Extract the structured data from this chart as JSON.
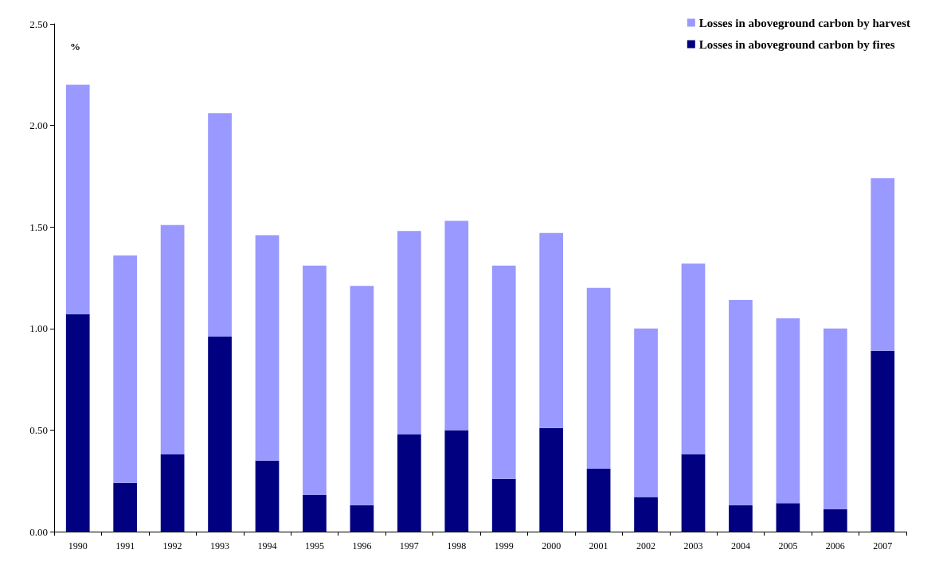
{
  "chart_data": {
    "type": "bar",
    "ylabel": "%",
    "stacked": true,
    "categories": [
      "1990",
      "1991",
      "1992",
      "1993",
      "1994",
      "1995",
      "1996",
      "1997",
      "1998",
      "1999",
      "2000",
      "2001",
      "2002",
      "2003",
      "2004",
      "2005",
      "2006",
      "2007"
    ],
    "series": [
      {
        "name": "Losses in aboveground carbon by fires",
        "color": "#000080",
        "values": [
          1.07,
          0.24,
          0.38,
          0.96,
          0.35,
          0.18,
          0.13,
          0.48,
          0.5,
          0.26,
          0.51,
          0.31,
          0.17,
          0.38,
          0.13,
          0.14,
          0.11,
          0.89
        ]
      },
      {
        "name": "Losses in aboveground carbon by harvest",
        "color": "#9999ff",
        "values": [
          1.13,
          1.12,
          1.13,
          1.1,
          1.11,
          1.13,
          1.08,
          1.0,
          1.03,
          1.05,
          0.96,
          0.89,
          0.83,
          0.94,
          1.01,
          0.91,
          0.89,
          0.85
        ]
      }
    ],
    "ylim": [
      0,
      2.5
    ],
    "yticks": [
      {
        "value": 0,
        "label": "0.00"
      },
      {
        "value": 0.5,
        "label": "0.50"
      },
      {
        "value": 1,
        "label": "1.00"
      },
      {
        "value": 1.5,
        "label": "1.50"
      },
      {
        "value": 2,
        "label": "2.00"
      },
      {
        "value": 2.5,
        "label": "2.50"
      }
    ],
    "grid": false,
    "legend": "top right"
  }
}
